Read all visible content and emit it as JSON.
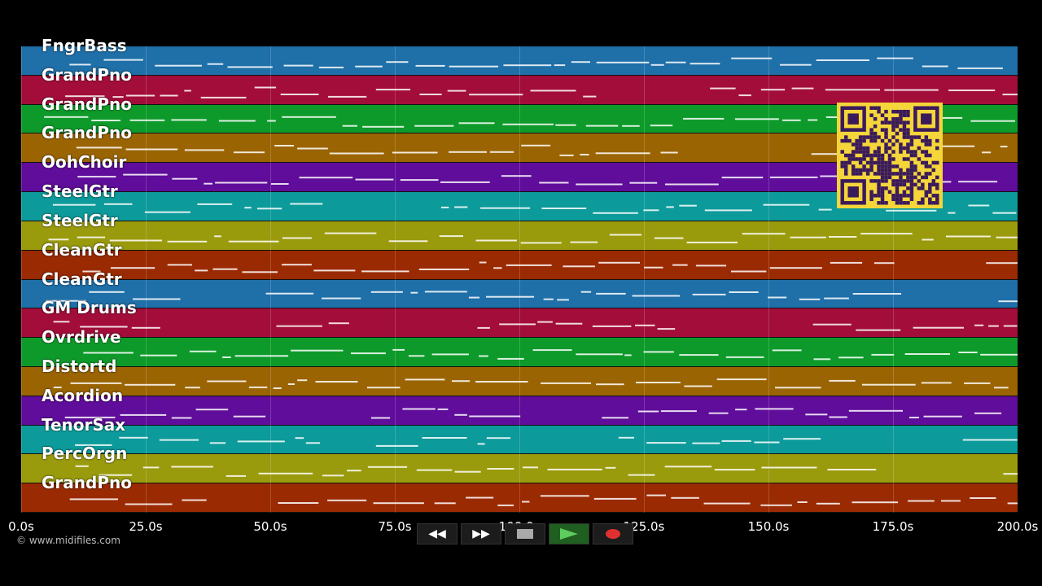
{
  "tracks": [
    {
      "name": "FngrBass",
      "color": "#1f6fa8"
    },
    {
      "name": "GrandPno",
      "color": "#a30d3a"
    },
    {
      "name": "GrandPno",
      "color": "#0d9a2a"
    },
    {
      "name": "GrandPno",
      "color": "#9a6402"
    },
    {
      "name": "OohChoir",
      "color": "#5f0d9a"
    },
    {
      "name": "SteelGtr",
      "color": "#0d9a9a"
    },
    {
      "name": "SteelGtr",
      "color": "#9a9a0d"
    },
    {
      "name": "CleanGtr",
      "color": "#9a2a02"
    },
    {
      "name": "CleanGtr",
      "color": "#1f6fa8"
    },
    {
      "name": "GM Drums",
      "color": "#a30d3a"
    },
    {
      "name": "Ovrdrive",
      "color": "#0d9a2a"
    },
    {
      "name": "Distortd",
      "color": "#9a6402"
    },
    {
      "name": "Acordion",
      "color": "#5f0d9a"
    },
    {
      "name": "TenorSax",
      "color": "#0d9a9a"
    },
    {
      "name": "PercOrgn",
      "color": "#9a9a0d"
    },
    {
      "name": "GrandPno",
      "color": "#9a2a02"
    }
  ],
  "time_axis": {
    "min": 0,
    "max": 200,
    "ticks": [
      {
        "value": 0,
        "label": "0.0s"
      },
      {
        "value": 25,
        "label": "25.0s"
      },
      {
        "value": 50,
        "label": "50.0s"
      },
      {
        "value": 75,
        "label": "75.0s"
      },
      {
        "value": 100,
        "label": "100.0s"
      },
      {
        "value": 125,
        "label": "125.0s"
      },
      {
        "value": 150,
        "label": "150.0s"
      },
      {
        "value": 175,
        "label": "175.0s"
      },
      {
        "value": 200,
        "label": "200.0s"
      }
    ]
  },
  "copyright": "© www.midifiles.com",
  "transport": {
    "rewind_icon": "rewind-icon",
    "fastforward_icon": "fast-forward-icon",
    "stop_icon": "stop-icon",
    "play_icon": "play-icon",
    "record_icon": "record-icon",
    "play_color": "#5ecc5e",
    "record_color": "#e03030"
  },
  "qr_color": "#f5d63a"
}
